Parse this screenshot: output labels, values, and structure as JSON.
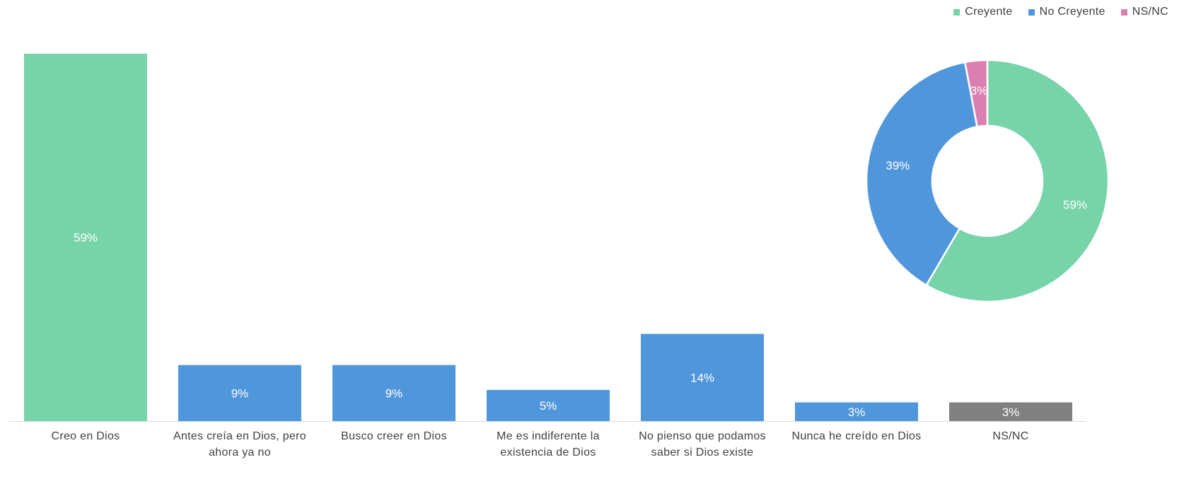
{
  "chart_data": [
    {
      "type": "bar",
      "categories": [
        "Creo en Dios",
        "Antes creía en Dios, pero ahora ya no",
        "Busco creer en Dios",
        "Me es indiferente la existencia de Dios",
        "No pienso que podamos saber si Dios existe",
        "Nunca he creído en Dios",
        "NS/NC"
      ],
      "values": [
        59,
        9,
        9,
        5,
        14,
        3,
        3
      ],
      "data_labels": [
        "59%",
        "9%",
        "9%",
        "5%",
        "14%",
        "3%",
        "3%"
      ],
      "bar_colors": [
        "#77d3a9",
        "#5096db",
        "#5096db",
        "#5096db",
        "#5096db",
        "#5096db",
        "#808080"
      ],
      "ylim": [
        0,
        60
      ],
      "grid": false,
      "title": "",
      "xlabel": "",
      "ylabel": ""
    },
    {
      "type": "pie",
      "donut": true,
      "labels": [
        "Creyente",
        "No Creyente",
        "NS/NC"
      ],
      "values": [
        59,
        39,
        3
      ],
      "data_labels": [
        "59%",
        "39%",
        "3%"
      ],
      "colors": [
        "#77d3a9",
        "#5096db",
        "#db7fb3"
      ],
      "legend_position": "top-right"
    }
  ],
  "legend": {
    "items": [
      {
        "label": "Creyente",
        "color": "#77d3a9"
      },
      {
        "label": "No Creyente",
        "color": "#5096db"
      },
      {
        "label": "NS/NC",
        "color": "#db7fb3"
      }
    ]
  }
}
